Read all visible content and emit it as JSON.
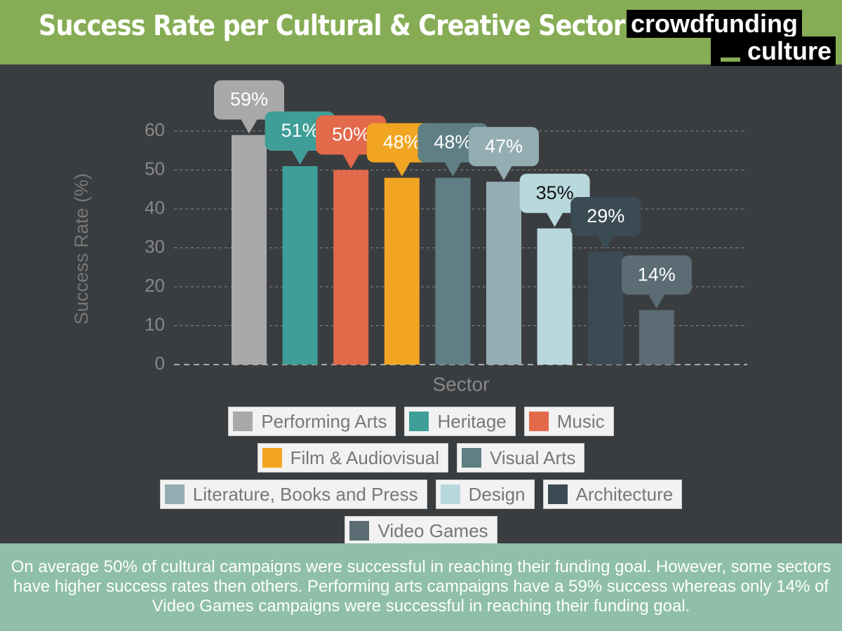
{
  "header": {
    "title": "Success Rate per Cultural & Creative Sector",
    "logo_top": "crowdfunding",
    "logo_bottom": "culture"
  },
  "chart_data": {
    "type": "bar",
    "categories": [
      "Performing Arts",
      "Heritage",
      "Music",
      "Film & Audiovisual",
      "Visual Arts",
      "Literature, Books and Press",
      "Design",
      "Architecture",
      "Video Games"
    ],
    "values": [
      59,
      51,
      50,
      48,
      48,
      47,
      35,
      29,
      14
    ],
    "value_labels": [
      "59%",
      "51%",
      "50%",
      "48%",
      "48%",
      "47%",
      "35%",
      "29%",
      "14%"
    ],
    "colors": [
      "#a9a9a9",
      "#3f9e97",
      "#e3694b",
      "#f2a522",
      "#5f7f85",
      "#93adb3",
      "#b8d8de",
      "#3b4b53",
      "#5b6c74"
    ],
    "ylabel": "Success Rate (%)",
    "xlabel": "Sector",
    "ylim": [
      0,
      60
    ],
    "yticks": [
      0,
      10,
      20,
      30,
      40,
      50,
      60
    ],
    "grid": true,
    "legend": "bottom"
  },
  "footer": "On average 50% of cultural campaigns were successful in reaching their funding goal. However, some sectors have higher success rates then others. Performing arts campaigns have a 59% success whereas only 14% of Video Games campaigns were successful in reaching their funding goal."
}
